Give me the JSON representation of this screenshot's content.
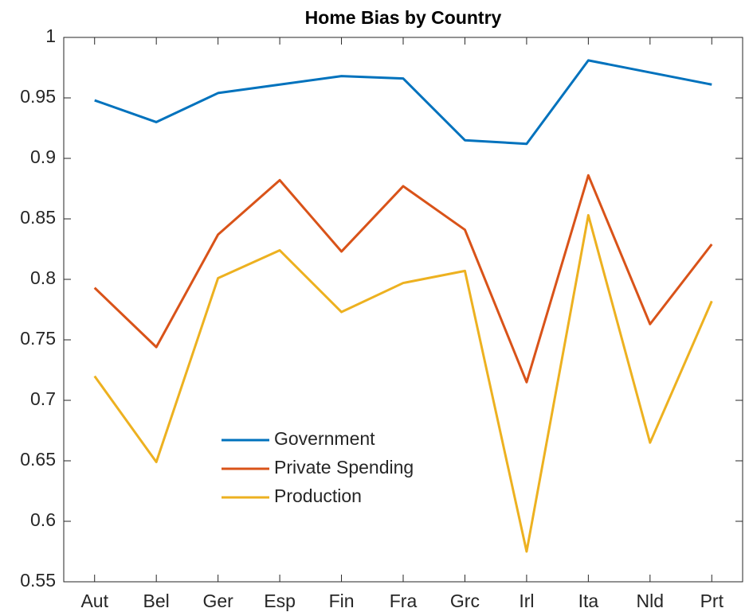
{
  "chart_data": {
    "type": "line",
    "title": "Home Bias by Country",
    "categories": [
      "Aut",
      "Bel",
      "Ger",
      "Esp",
      "Fin",
      "Fra",
      "Grc",
      "Irl",
      "Ita",
      "Nld",
      "Prt"
    ],
    "series": [
      {
        "name": "Government",
        "color": "#0072BD",
        "values": [
          0.948,
          0.93,
          0.954,
          0.961,
          0.968,
          0.966,
          0.915,
          0.912,
          0.981,
          0.971,
          0.961
        ]
      },
      {
        "name": "Private Spending",
        "color": "#D95319",
        "values": [
          0.793,
          0.744,
          0.837,
          0.882,
          0.823,
          0.877,
          0.841,
          0.715,
          0.886,
          0.763,
          0.829
        ]
      },
      {
        "name": "Production",
        "color": "#EDB120",
        "values": [
          0.72,
          0.649,
          0.801,
          0.824,
          0.773,
          0.797,
          0.807,
          0.575,
          0.853,
          0.665,
          0.782
        ]
      }
    ],
    "ylim": [
      0.55,
      1
    ],
    "yticks": [
      0.55,
      0.6,
      0.65,
      0.7,
      0.75,
      0.8,
      0.85,
      0.9,
      0.95,
      1
    ],
    "grid": false
  }
}
